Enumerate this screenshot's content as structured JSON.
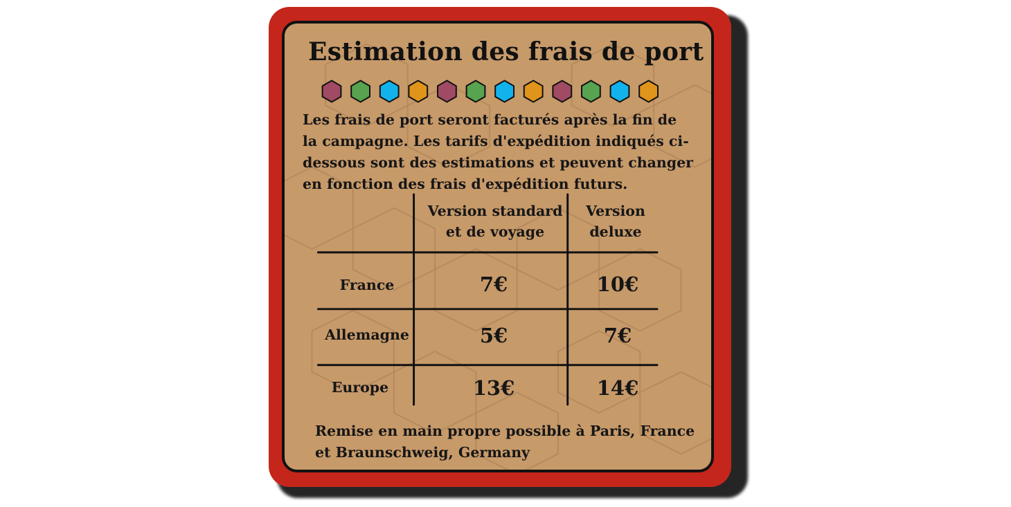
{
  "title": "Estimation des frais de port",
  "hexagons": [
    {
      "color": "#a14a64",
      "icon": "hexagon-icon"
    },
    {
      "color": "#57a34f",
      "icon": "hexagon-icon"
    },
    {
      "color": "#12b3ec",
      "icon": "hexagon-icon"
    },
    {
      "color": "#e0941a",
      "icon": "hexagon-icon"
    },
    {
      "color": "#a14a64",
      "icon": "hexagon-icon"
    },
    {
      "color": "#57a34f",
      "icon": "hexagon-icon"
    },
    {
      "color": "#12b3ec",
      "icon": "hexagon-icon"
    },
    {
      "color": "#e0941a",
      "icon": "hexagon-icon"
    },
    {
      "color": "#a14a64",
      "icon": "hexagon-icon"
    },
    {
      "color": "#57a34f",
      "icon": "hexagon-icon"
    },
    {
      "color": "#12b3ec",
      "icon": "hexagon-icon"
    },
    {
      "color": "#e0941a",
      "icon": "hexagon-icon"
    }
  ],
  "intro": {
    "lines": [
      "Les frais de port seront facturés après la fin de",
      "la campagne. Les tarifs d'expédition indiqués ci-",
      "dessous sont des estimations et peuvent changer",
      "en fonction des frais d'expédition futurs."
    ]
  },
  "table": {
    "headers": {
      "standard": [
        "Version standard",
        "et de voyage"
      ],
      "deluxe": [
        "Version",
        "deluxe"
      ]
    },
    "rows": [
      {
        "region": "France",
        "standard": "7€",
        "deluxe": "10€"
      },
      {
        "region": "Allemagne",
        "standard": "5€",
        "deluxe": "7€"
      },
      {
        "region": "Europe",
        "standard": "13€",
        "deluxe": "14€"
      }
    ]
  },
  "footer": {
    "lines": [
      "Remise en main propre possible à Paris, France",
      "et Braunschweig, Germany"
    ]
  },
  "colors": {
    "border_red": "#c4261b",
    "parchment": "#c79a6a",
    "ink": "#161616"
  }
}
